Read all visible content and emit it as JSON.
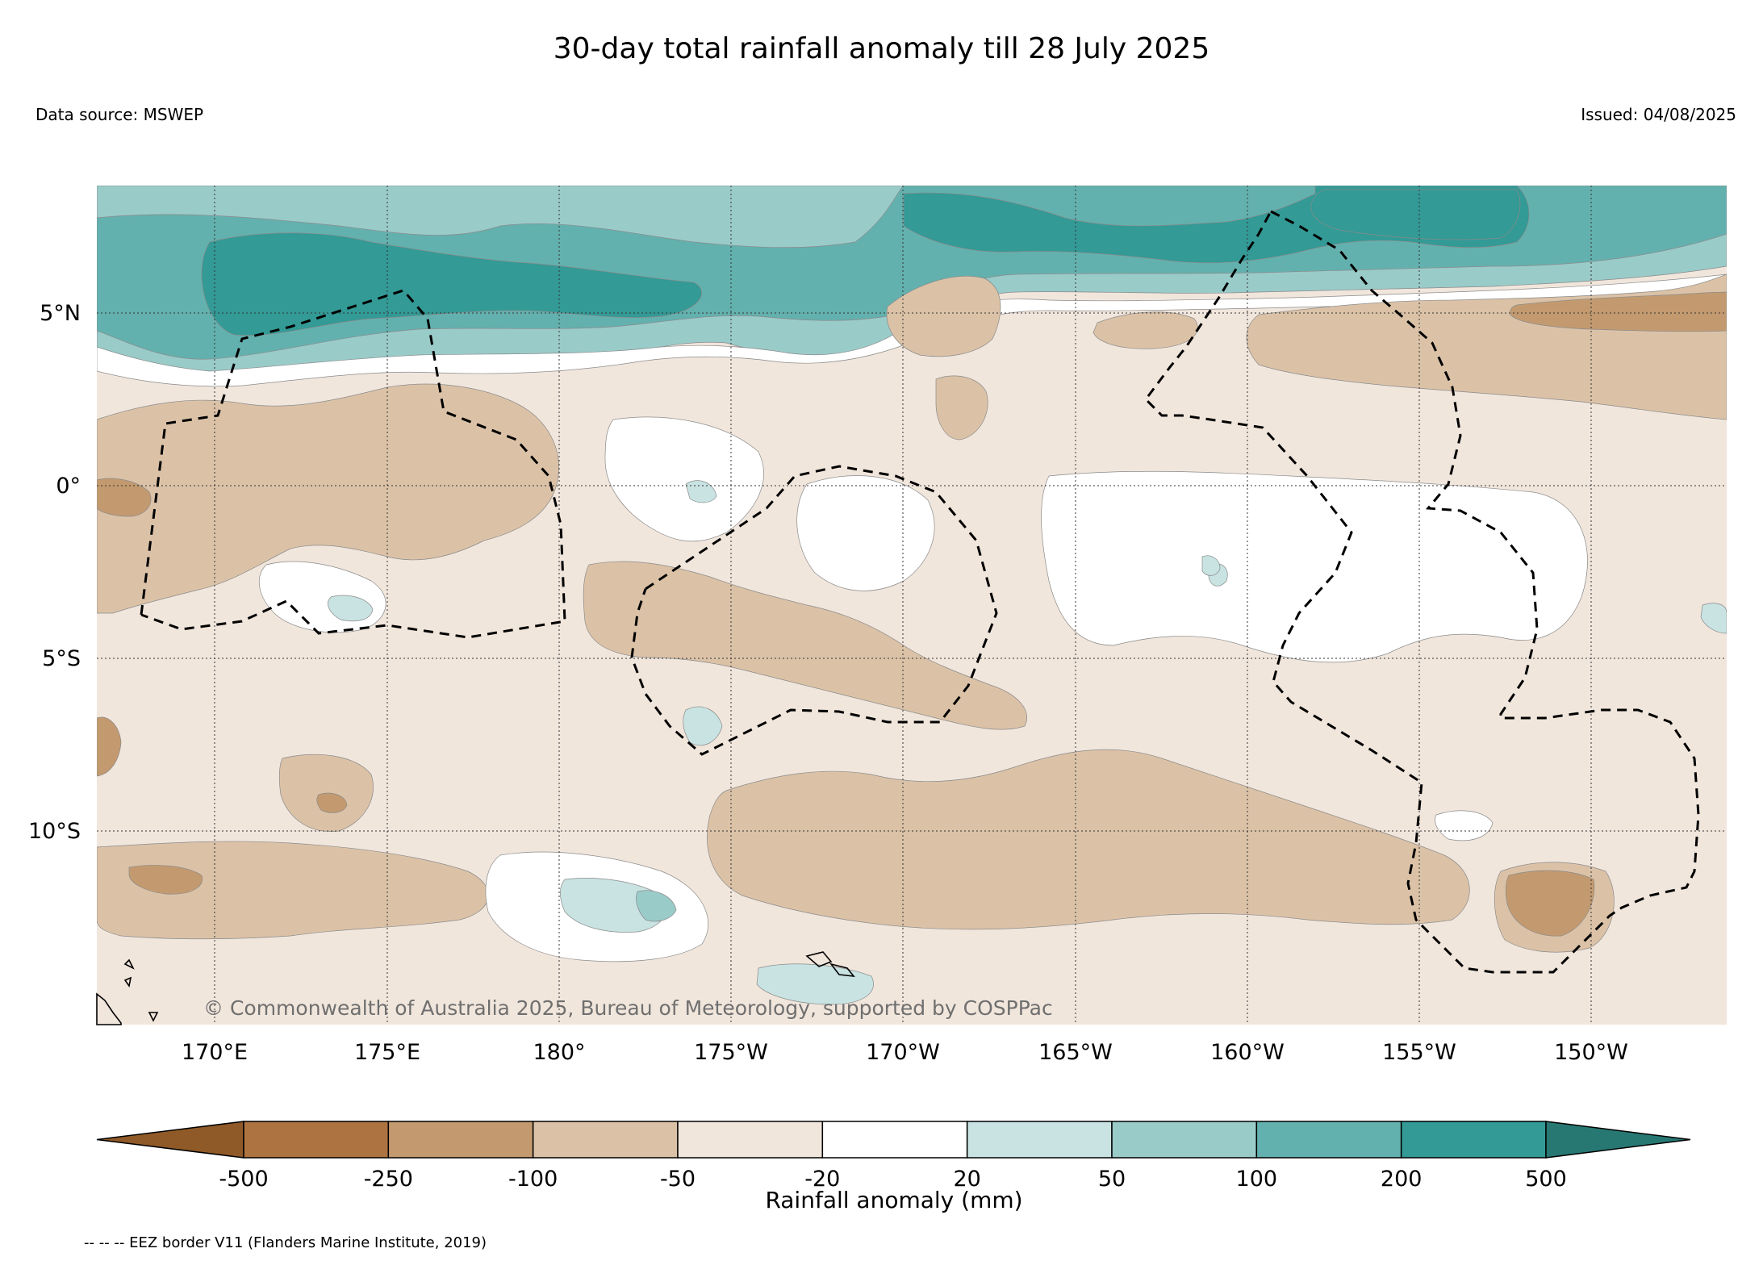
{
  "title": "30-day total rainfall anomaly till 28 July 2025",
  "data_source": "Data source: MSWEP",
  "issued": "Issued: 04/08/2025",
  "copyright": "© Commonwealth of Australia 2025, Bureau of Meteorology, supported by COSPPac",
  "footnote": "-- -- -- EEZ border V11 (Flanders Marine Institute, 2019)",
  "map": {
    "lon_range": [
      166.6,
      213.9
    ],
    "lat_range": [
      -15.9,
      8.5
    ],
    "lon_ticks": [
      {
        "value": 170,
        "label": "170°E"
      },
      {
        "value": 175,
        "label": "175°E"
      },
      {
        "value": 180,
        "label": "180°"
      },
      {
        "value": 185,
        "label": "175°W"
      },
      {
        "value": 190,
        "label": "170°W"
      },
      {
        "value": 195,
        "label": "165°W"
      },
      {
        "value": 200,
        "label": "160°W"
      },
      {
        "value": 205,
        "label": "155°W"
      },
      {
        "value": 210,
        "label": "150°W"
      }
    ],
    "lat_ticks": [
      {
        "value": 5,
        "label": "5°N"
      },
      {
        "value": 0,
        "label": "0°"
      },
      {
        "value": -5,
        "label": "5°S"
      },
      {
        "value": -10,
        "label": "10°S"
      }
    ],
    "gridlines": true
  },
  "colorbar": {
    "label": "Rainfall anomaly (mm)",
    "boundaries": [
      "-500",
      "-250",
      "-100",
      "-50",
      "-20",
      "20",
      "50",
      "100",
      "200",
      "500"
    ],
    "colors": [
      "#8f5a28",
      "#ad7340",
      "#c39a6f",
      "#dbc2a7",
      "#f1e6dc",
      "#ffffff",
      "#c8e3e2",
      "#99cbc9",
      "#63b1ae",
      "#339a96",
      "#277873"
    ],
    "extend": "both"
  }
}
